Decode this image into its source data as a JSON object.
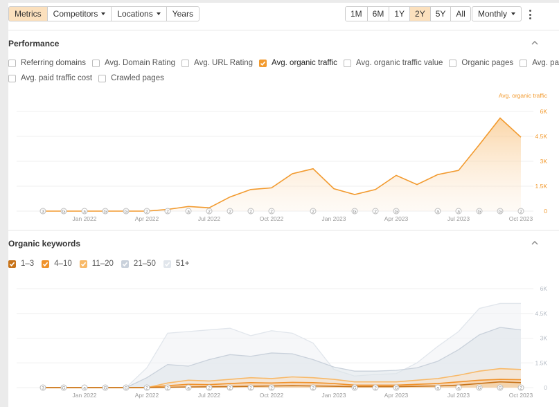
{
  "toolbar": {
    "view_tabs": [
      {
        "label": "Metrics",
        "active": true
      },
      {
        "label": "Competitors",
        "dropdown": true
      },
      {
        "label": "Locations",
        "dropdown": true
      },
      {
        "label": "Years"
      }
    ],
    "ranges": [
      {
        "label": "1M"
      },
      {
        "label": "6M"
      },
      {
        "label": "1Y"
      },
      {
        "label": "2Y",
        "active": true
      },
      {
        "label": "5Y"
      },
      {
        "label": "All"
      }
    ],
    "interval": "Monthly",
    "more_icon": "kebab-menu-icon"
  },
  "performance": {
    "title": "Performance",
    "metrics": [
      {
        "label": "Referring domains",
        "checked": false
      },
      {
        "label": "Avg. Domain Rating",
        "checked": false
      },
      {
        "label": "Avg. URL Rating",
        "checked": false
      },
      {
        "label": "Avg. organic traffic",
        "checked": true,
        "color": "#f29a2e"
      },
      {
        "label": "Avg. organic traffic value",
        "checked": false
      },
      {
        "label": "Organic pages",
        "checked": false
      },
      {
        "label": "Avg. paid traffic",
        "checked": false
      },
      {
        "label": "Avg. paid traffic cost",
        "checked": false
      },
      {
        "label": "Crawled pages",
        "checked": false
      }
    ]
  },
  "keywords": {
    "title": "Organic keywords",
    "buckets": [
      {
        "label": "1–3",
        "checked": true,
        "color": "#c8741a"
      },
      {
        "label": "4–10",
        "checked": true,
        "color": "#f0922a"
      },
      {
        "label": "11–20",
        "checked": true,
        "color": "#f8b968"
      },
      {
        "label": "21–50",
        "checked": true,
        "color": "#c9d1db"
      },
      {
        "label": "51+",
        "checked": true,
        "color": "#e1e6ec"
      }
    ]
  },
  "x_ticks": [
    "Jan 2022",
    "Apr 2022",
    "Jul 2022",
    "Oct 2022",
    "Jan 2023",
    "Apr 2023",
    "Jul 2023",
    "Oct 2023"
  ],
  "chart_data": [
    {
      "type": "area",
      "series": [
        {
          "name": "Avg. organic traffic",
          "color": "#f29a2e",
          "x": [
            "Nov 2021",
            "Dec 2021",
            "Jan 2022",
            "Feb 2022",
            "Mar 2022",
            "Apr 2022",
            "May 2022",
            "Jun 2022",
            "Jul 2022",
            "Aug 2022",
            "Sep 2022",
            "Oct 2022",
            "Nov 2022",
            "Dec 2022",
            "Jan 2023",
            "Feb 2023",
            "Mar 2023",
            "Apr 2023",
            "May 2023",
            "Jun 2023",
            "Jul 2023",
            "Aug 2023",
            "Sep 2023",
            "Oct 2023"
          ],
          "values": [
            0,
            0,
            0,
            0,
            0,
            0,
            100,
            280,
            200,
            850,
            1300,
            1400,
            2250,
            2550,
            1350,
            1000,
            1300,
            2150,
            1600,
            2200,
            2450,
            4000,
            5600,
            4450
          ]
        }
      ],
      "y_ticks": [
        "0",
        "1.5K",
        "3K",
        "4.5K",
        "6K"
      ],
      "ylim": [
        0,
        6000
      ]
    },
    {
      "type": "area",
      "x": [
        "Nov 2021",
        "Dec 2021",
        "Jan 2022",
        "Feb 2022",
        "Mar 2022",
        "Apr 2022",
        "May 2022",
        "Jun 2022",
        "Jul 2022",
        "Aug 2022",
        "Sep 2022",
        "Oct 2022",
        "Nov 2022",
        "Dec 2022",
        "Jan 2023",
        "Feb 2023",
        "Mar 2023",
        "Apr 2023",
        "May 2023",
        "Jun 2023",
        "Jul 2023",
        "Aug 2023",
        "Sep 2023",
        "Oct 2023"
      ],
      "series": [
        {
          "name": "1–3",
          "values": [
            0,
            0,
            0,
            0,
            0,
            0,
            20,
            40,
            50,
            60,
            80,
            100,
            120,
            100,
            80,
            60,
            60,
            60,
            80,
            100,
            150,
            250,
            350,
            300
          ]
        },
        {
          "name": "4–10",
          "values": [
            0,
            0,
            0,
            0,
            0,
            0,
            120,
            200,
            180,
            250,
            300,
            280,
            320,
            300,
            250,
            150,
            150,
            150,
            200,
            250,
            350,
            450,
            500,
            480
          ]
        },
        {
          "name": "11–20",
          "values": [
            0,
            0,
            0,
            0,
            0,
            0,
            280,
            450,
            400,
            500,
            600,
            550,
            650,
            600,
            500,
            350,
            350,
            350,
            450,
            550,
            750,
            1000,
            1150,
            1100
          ]
        },
        {
          "name": "21–50",
          "values": [
            0,
            0,
            0,
            0,
            0,
            600,
            1400,
            1300,
            1700,
            2000,
            1900,
            2100,
            2050,
            1700,
            1250,
            1000,
            1000,
            1050,
            1200,
            1600,
            2300,
            3200,
            3650,
            3500
          ]
        },
        {
          "name": "51+",
          "values": [
            0,
            0,
            0,
            0,
            0,
            1200,
            3300,
            3400,
            3500,
            3600,
            3150,
            3450,
            3300,
            2700,
            1100,
            700,
            800,
            850,
            1500,
            2500,
            3400,
            4800,
            5100,
            5100
          ]
        }
      ],
      "y_ticks": [
        "0",
        "1.5K",
        "3K",
        "4.5K",
        "6K"
      ],
      "ylim": [
        0,
        6000
      ]
    }
  ]
}
